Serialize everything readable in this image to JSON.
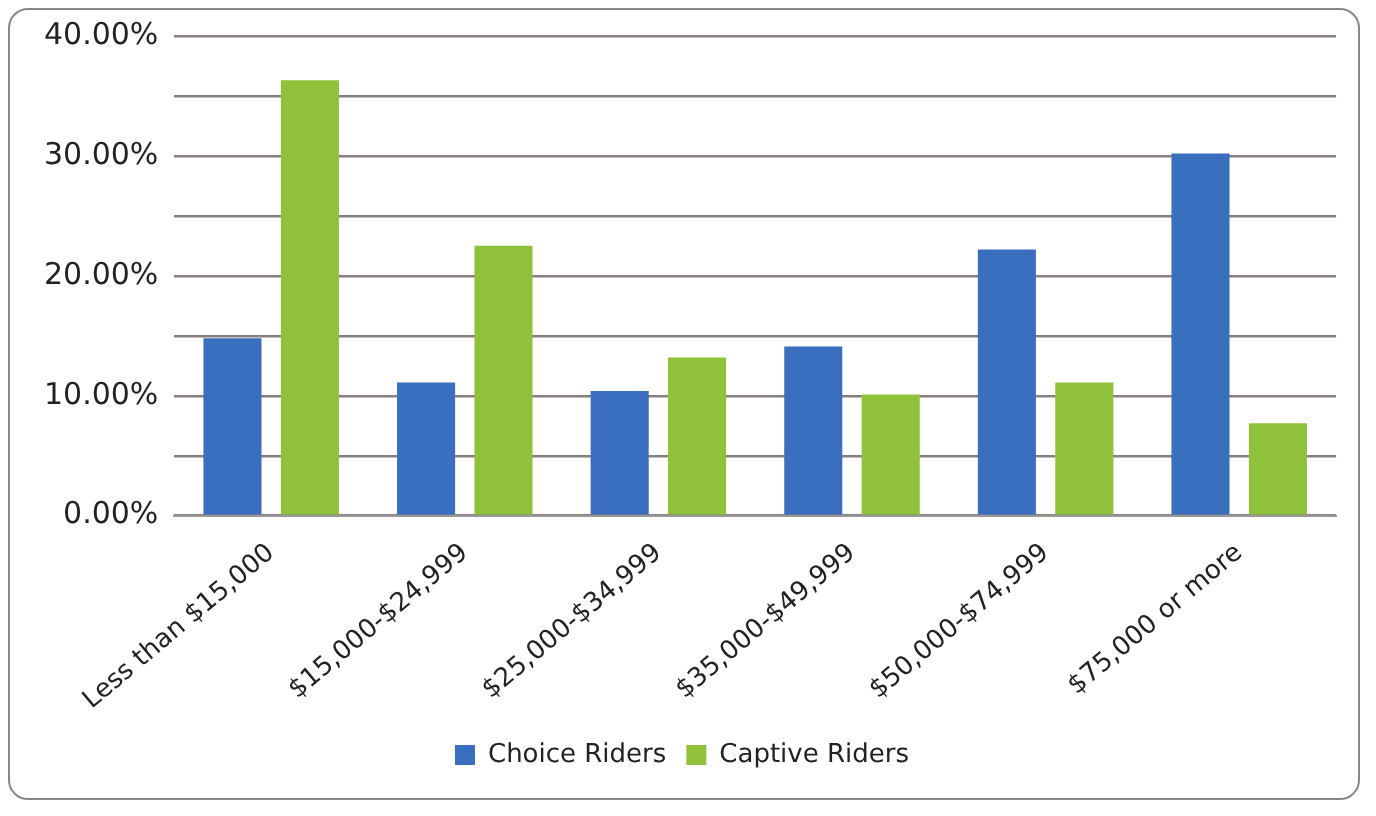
{
  "chart_data": {
    "type": "bar",
    "categories": [
      "Less than $15,000",
      "$15,000-$24,999",
      "$25,000-$34,999",
      "$35,000-$49,999",
      "$50,000-$74,999",
      "$75,000 or more"
    ],
    "series": [
      {
        "name": "Choice Riders",
        "color": "#3a6fc0",
        "values": [
          14.8,
          11.1,
          10.4,
          14.1,
          22.2,
          30.2
        ]
      },
      {
        "name": "Captive Riders",
        "color": "#8fc23a",
        "values": [
          36.3,
          22.5,
          13.2,
          10.1,
          11.1,
          7.7
        ]
      }
    ],
    "ylim": [
      0,
      40
    ],
    "yticks": [
      {
        "value": 0,
        "label": "0.00%"
      },
      {
        "value": 5,
        "label": null
      },
      {
        "value": 10,
        "label": "10.00%"
      },
      {
        "value": 15,
        "label": null
      },
      {
        "value": 20,
        "label": "20.00%"
      },
      {
        "value": 25,
        "label": null
      },
      {
        "value": 30,
        "label": "30.00%"
      },
      {
        "value": 35,
        "label": null
      },
      {
        "value": 40,
        "label": "40.00%"
      }
    ],
    "grid": "y",
    "legend": "bottom"
  }
}
